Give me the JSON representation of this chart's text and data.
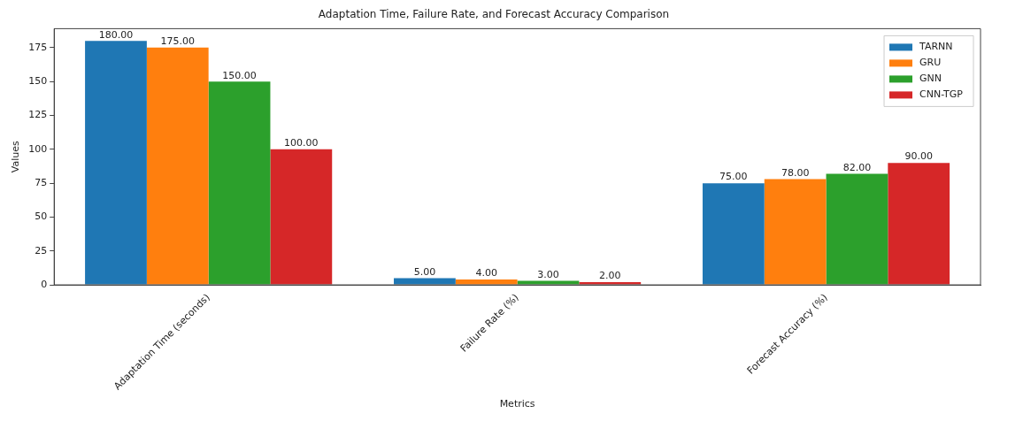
{
  "chart_data": {
    "type": "bar",
    "title": "Adaptation Time, Failure Rate, and Forecast Accuracy Comparison",
    "xlabel": "Metrics",
    "ylabel": "Values",
    "categories": [
      "Adaptation Time (seconds)",
      "Failure Rate (%)",
      "Forecast Accuracy (%)"
    ],
    "series": [
      {
        "name": "TARNN",
        "color": "#1f77b4",
        "values": [
          180,
          5,
          75
        ],
        "value_labels": [
          "180.00",
          "5.00",
          "75.00"
        ]
      },
      {
        "name": "GRU",
        "color": "#ff7f0e",
        "values": [
          175,
          4,
          78
        ],
        "value_labels": [
          "175.00",
          "4.00",
          "78.00"
        ]
      },
      {
        "name": "GNN",
        "color": "#2ca02c",
        "values": [
          150,
          3,
          82
        ],
        "value_labels": [
          "150.00",
          "3.00",
          "82.00"
        ]
      },
      {
        "name": "CNN-TGP",
        "color": "#d62728",
        "values": [
          100,
          2,
          90
        ],
        "value_labels": [
          "100.00",
          "2.00",
          "90.00"
        ]
      }
    ],
    "ylim": [
      0,
      189
    ],
    "yticks": [
      0,
      25,
      50,
      75,
      100,
      125,
      150,
      175
    ],
    "grid": false,
    "legend": "top right"
  }
}
